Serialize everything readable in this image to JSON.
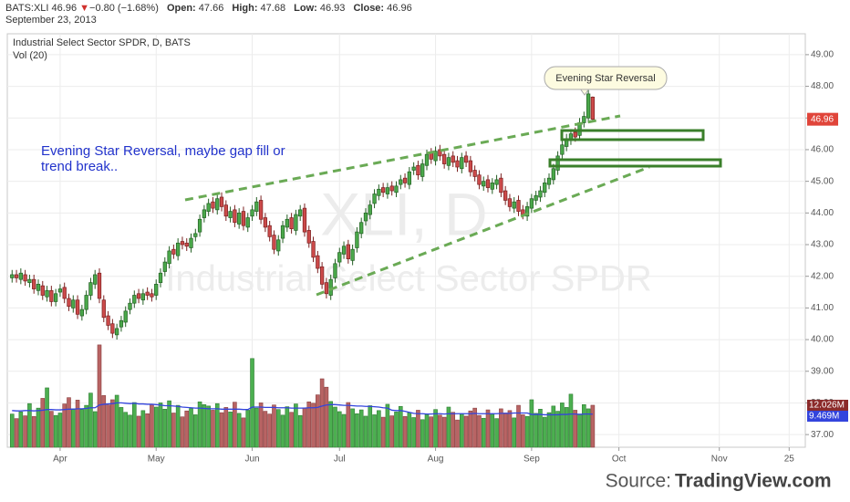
{
  "header": {
    "symbol": "BATS:XLI",
    "arrow": "▼",
    "change": "−0.80 (−1.68%)",
    "open_label": "Open:",
    "high_label": "High:",
    "low_label": "Low:",
    "close_label": "Close:",
    "date": "September 23, 2013"
  },
  "chart_data": {
    "type": "candlestick",
    "title": "Industrial Select Sector SPDR, D, BATS",
    "subtitle": "Vol (20)",
    "watermark": [
      "XLI, D",
      "Industrial Select Sector SPDR"
    ],
    "annotations": {
      "callout": "Evening Star Reversal",
      "note": [
        "Evening Star Reversal, maybe gap fill or",
        "trend break.."
      ]
    },
    "xlim": [
      -1.1,
      181.7
    ],
    "xticks": [
      {
        "value": 11,
        "label": "Apr"
      },
      {
        "value": 33,
        "label": "May"
      },
      {
        "value": 55,
        "label": "Jun"
      },
      {
        "value": 75,
        "label": "Jul"
      },
      {
        "value": 97,
        "label": "Aug"
      },
      {
        "value": 119,
        "label": "Sep"
      },
      {
        "value": 139,
        "label": "Oct"
      },
      {
        "value": 162,
        "label": "Nov"
      },
      {
        "value": 178,
        "label": "25"
      }
    ],
    "ylim": [
      36.6,
      49.66
    ],
    "yticks": [
      {
        "value": 37,
        "label": "37.00"
      },
      {
        "value": 38,
        "label": "38.00"
      },
      {
        "value": 39,
        "label": "39.00"
      },
      {
        "value": 40,
        "label": "40.00"
      },
      {
        "value": 41,
        "label": "41.00"
      },
      {
        "value": 42,
        "label": "42.00"
      },
      {
        "value": 43,
        "label": "43.00"
      },
      {
        "value": 44,
        "label": "44.00"
      },
      {
        "value": 45,
        "label": "45.00"
      },
      {
        "value": 46,
        "label": "46.00"
      },
      {
        "value": 47,
        "label": "47.00"
      },
      {
        "value": 48,
        "label": "48.00"
      },
      {
        "value": 49,
        "label": "49.00"
      }
    ],
    "y2lim": [
      0,
      118.4
    ],
    "grid": true,
    "up_color": "#4aa84a",
    "down_color": "#cc4a4a",
    "volume_up_color": "#4caf50",
    "volume_down_color": "#b86464",
    "volume_ma_color": "#3344dd",
    "price_label_color": "#e0453a",
    "volume_label_color": "#8b2a2a",
    "open": [
      41.95,
      42.05,
      41.9,
      42.05,
      41.8,
      41.9,
      41.55,
      41.7,
      41.35,
      41.55,
      41.2,
      41.5,
      41.65,
      41.3,
      41.0,
      41.25,
      40.75,
      40.95,
      41.4,
      41.75,
      42.1,
      41.25,
      40.75,
      40.5,
      40.15,
      40.4,
      40.55,
      40.95,
      41.15,
      41.45,
      41.25,
      41.5,
      41.45,
      41.4,
      41.8,
      42.15,
      42.4,
      42.85,
      42.65,
      43.1,
      43.05,
      42.9,
      43.25,
      43.4,
      43.85,
      44.05,
      44.35,
      44.1,
      44.5,
      44.25,
      43.85,
      44.1,
      43.65,
      44.05,
      43.55,
      43.9,
      44.05,
      44.4,
      43.85,
      43.6,
      43.3,
      42.8,
      43.2,
      43.55,
      43.85,
      43.45,
      43.9,
      44.15,
      43.45,
      43.1,
      42.65,
      42.3,
      41.8,
      41.4,
      41.95,
      42.45,
      42.7,
      43.0,
      42.5,
      42.9,
      43.35,
      43.75,
      43.95,
      44.3,
      44.55,
      44.8,
      44.6,
      44.85,
      44.65,
      44.9,
      45.1,
      44.9,
      45.35,
      45.5,
      45.15,
      45.5,
      45.9,
      45.65,
      46.0,
      45.85,
      45.5,
      45.8,
      45.65,
      45.4,
      45.8,
      45.65,
      45.35,
      45.2,
      44.85,
      45.05,
      44.75,
      44.9,
      45.1,
      44.7,
      44.45,
      44.15,
      44.4,
      44.1,
      43.9,
      44.15,
      44.4,
      44.5,
      44.65,
      44.9,
      45.05,
      45.35,
      45.85,
      46.1,
      46.3,
      46.55,
      46.45,
      46.85,
      47.0,
      47.66
    ],
    "high": [
      42.2,
      42.2,
      42.25,
      42.2,
      42.05,
      42.05,
      41.9,
      41.85,
      41.7,
      41.7,
      41.6,
      41.75,
      41.8,
      41.45,
      41.4,
      41.4,
      41.1,
      41.55,
      41.95,
      42.2,
      42.25,
      41.4,
      40.9,
      40.65,
      40.5,
      40.75,
      41.05,
      41.3,
      41.55,
      41.6,
      41.6,
      41.65,
      41.6,
      41.9,
      42.25,
      42.6,
      42.95,
      43.0,
      43.2,
      43.25,
      43.2,
      43.35,
      43.5,
      43.95,
      44.25,
      44.45,
      44.5,
      44.6,
      44.65,
      44.4,
      44.2,
      44.25,
      44.15,
      44.2,
      44.0,
      44.25,
      44.5,
      44.55,
      44.0,
      43.75,
      43.45,
      43.3,
      43.75,
      43.95,
      44.0,
      44.1,
      44.25,
      44.3,
      43.6,
      43.25,
      42.8,
      42.45,
      41.95,
      42.05,
      42.55,
      42.9,
      43.1,
      43.15,
      43.0,
      43.55,
      43.85,
      44.15,
      44.4,
      44.75,
      44.9,
      44.95,
      44.95,
      45.0,
      45.0,
      45.2,
      45.25,
      45.45,
      45.6,
      45.65,
      45.7,
      46.0,
      46.05,
      46.1,
      46.15,
      46.0,
      45.9,
      45.95,
      45.8,
      45.9,
      45.95,
      45.8,
      45.5,
      45.35,
      45.15,
      45.2,
      45.1,
      45.2,
      45.25,
      44.85,
      44.6,
      44.5,
      44.55,
      44.25,
      44.35,
      44.6,
      44.7,
      44.85,
      45.1,
      45.25,
      45.55,
      45.95,
      46.3,
      46.5,
      46.65,
      46.7,
      47.0,
      47.2,
      47.9,
      47.68
    ],
    "low": [
      41.8,
      41.8,
      41.75,
      41.7,
      41.65,
      41.45,
      41.4,
      41.25,
      41.2,
      41.05,
      41.05,
      41.35,
      41.15,
      40.9,
      40.85,
      40.65,
      40.6,
      40.8,
      41.25,
      41.6,
      41.15,
      40.55,
      40.3,
      40.05,
      40.0,
      40.25,
      40.4,
      40.8,
      41.0,
      41.15,
      41.1,
      41.25,
      41.2,
      41.25,
      41.65,
      42.0,
      42.25,
      42.55,
      42.5,
      42.85,
      42.8,
      42.75,
      43.1,
      43.25,
      43.7,
      43.9,
      44.0,
      43.95,
      44.05,
      43.75,
      43.7,
      43.55,
      43.5,
      43.45,
      43.4,
      43.75,
      43.9,
      43.65,
      43.4,
      43.1,
      42.7,
      42.65,
      43.05,
      43.4,
      43.35,
      43.3,
      43.75,
      43.25,
      42.9,
      42.45,
      42.1,
      41.6,
      41.3,
      41.25,
      41.8,
      42.3,
      42.55,
      42.4,
      42.35,
      42.75,
      43.2,
      43.6,
      43.8,
      44.15,
      44.4,
      44.5,
      44.45,
      44.55,
      44.5,
      44.75,
      44.8,
      44.75,
      45.2,
      45.05,
      45.0,
      45.35,
      45.55,
      45.5,
      45.65,
      45.4,
      45.35,
      45.45,
      45.3,
      45.25,
      45.45,
      45.15,
      45.0,
      44.75,
      44.7,
      44.65,
      44.6,
      44.75,
      44.5,
      44.25,
      44.05,
      44.0,
      43.9,
      43.8,
      43.75,
      44.0,
      44.25,
      44.35,
      44.5,
      44.75,
      44.9,
      45.2,
      45.7,
      45.95,
      46.15,
      46.25,
      46.3,
      46.7,
      46.85,
      46.93
    ],
    "close": [
      42.05,
      41.95,
      42.1,
      41.85,
      41.9,
      41.6,
      41.75,
      41.4,
      41.55,
      41.2,
      41.45,
      41.6,
      41.3,
      41.05,
      41.25,
      40.8,
      40.95,
      41.4,
      41.8,
      42.05,
      41.3,
      40.7,
      40.45,
      40.2,
      40.35,
      40.6,
      40.9,
      41.15,
      41.4,
      41.3,
      41.45,
      41.4,
      41.35,
      41.75,
      42.1,
      42.45,
      42.8,
      42.7,
      43.05,
      43.0,
      42.95,
      43.2,
      43.35,
      43.8,
      44.1,
      44.3,
      44.15,
      44.45,
      44.2,
      43.9,
      44.05,
      43.7,
      44.0,
      43.6,
      43.85,
      44.1,
      44.35,
      43.8,
      43.55,
      43.25,
      42.85,
      43.15,
      43.6,
      43.8,
      43.5,
      43.95,
      44.1,
      43.4,
      43.05,
      42.6,
      42.25,
      41.75,
      41.45,
      41.9,
      42.4,
      42.75,
      42.95,
      42.55,
      42.85,
      43.4,
      43.7,
      44.0,
      44.25,
      44.6,
      44.75,
      44.65,
      44.8,
      44.7,
      44.85,
      45.05,
      44.95,
      45.3,
      45.45,
      45.2,
      45.55,
      45.85,
      45.7,
      45.95,
      45.8,
      45.55,
      45.75,
      45.6,
      45.45,
      45.75,
      45.6,
      45.3,
      45.15,
      44.9,
      45.0,
      44.8,
      44.95,
      45.05,
      44.65,
      44.4,
      44.2,
      44.35,
      44.05,
      43.95,
      44.2,
      44.45,
      44.55,
      44.7,
      44.95,
      45.1,
      45.4,
      45.8,
      46.15,
      46.35,
      46.5,
      46.4,
      46.85,
      47.05,
      47.76,
      46.96
    ],
    "volume": [
      9.5,
      8.2,
      10.1,
      9.0,
      12.5,
      8.8,
      11.2,
      14.0,
      17.0,
      10.3,
      9.1,
      9.8,
      12.4,
      14.2,
      11.0,
      13.5,
      10.8,
      12.0,
      15.5,
      10.2,
      29.3,
      14.8,
      12.1,
      13.6,
      14.9,
      11.4,
      10.0,
      9.2,
      12.8,
      8.9,
      10.5,
      9.6,
      12.2,
      11.5,
      12.7,
      10.9,
      13.3,
      9.8,
      12.0,
      8.7,
      10.4,
      11.1,
      9.3,
      13.0,
      12.2,
      11.8,
      10.6,
      12.5,
      9.9,
      11.4,
      10.1,
      12.9,
      9.7,
      8.4,
      10.6,
      25.4,
      11.2,
      12.7,
      10.3,
      9.5,
      12.1,
      10.8,
      9.2,
      11.6,
      10.0,
      12.4,
      9.1,
      11.3,
      13.0,
      12.6,
      15.0,
      19.6,
      17.2,
      13.1,
      11.5,
      10.2,
      9.4,
      12.8,
      11.0,
      9.6,
      10.7,
      8.9,
      11.9,
      9.3,
      10.5,
      8.6,
      12.3,
      9.0,
      10.1,
      11.7,
      8.8,
      9.9,
      8.5,
      10.6,
      7.9,
      9.4,
      8.7,
      10.8,
      9.2,
      8.6,
      11.5,
      10.0,
      7.8,
      9.6,
      8.9,
      10.4,
      11.2,
      9.1,
      8.3,
      10.7,
      9.5,
      8.2,
      11.0,
      9.8,
      10.5,
      8.4,
      12.0,
      9.3,
      8.8,
      13.6,
      9.7,
      10.9,
      8.6,
      9.9,
      11.8,
      10.3,
      12.7,
      11.4,
      15.2,
      10.6,
      9.5,
      12.2,
      11.0,
      12.026
    ],
    "volume_label": "12.026M",
    "volume_ma": [
      10.5,
      10.4,
      10.4,
      10.5,
      10.5,
      10.4,
      10.5,
      10.6,
      10.8,
      10.8,
      10.7,
      10.7,
      10.8,
      10.9,
      10.9,
      11.0,
      11.0,
      11.1,
      11.3,
      11.3,
      12.1,
      12.3,
      12.4,
      12.5,
      12.7,
      12.7,
      12.6,
      12.5,
      12.6,
      12.4,
      12.4,
      12.3,
      12.3,
      12.2,
      12.1,
      11.9,
      11.9,
      11.8,
      11.7,
      11.5,
      11.4,
      11.3,
      11.2,
      11.2,
      11.1,
      11.0,
      11.0,
      11.0,
      10.9,
      10.9,
      10.9,
      10.9,
      10.9,
      10.8,
      10.8,
      11.5,
      11.5,
      11.5,
      11.4,
      11.4,
      11.4,
      11.3,
      11.3,
      11.3,
      11.2,
      11.2,
      11.2,
      11.2,
      11.3,
      11.3,
      11.4,
      11.8,
      12.1,
      12.2,
      12.2,
      12.1,
      12.0,
      12.0,
      11.9,
      11.8,
      11.8,
      11.7,
      11.7,
      11.6,
      11.5,
      11.3,
      11.2,
      10.6,
      10.5,
      10.5,
      10.3,
      10.0,
      9.7,
      9.6,
      9.6,
      9.5,
      9.5,
      9.6,
      9.6,
      9.5,
      9.6,
      9.6,
      9.6,
      9.6,
      9.6,
      9.6,
      9.7,
      9.6,
      9.6,
      9.6,
      9.6,
      9.6,
      9.7,
      9.7,
      9.7,
      9.8,
      9.8,
      9.8,
      9.8,
      9.4,
      9.4,
      9.4,
      9.3,
      9.3,
      9.3,
      9.3,
      9.4,
      9.4,
      9.5,
      9.5,
      9.4,
      9.5,
      9.5,
      9.469
    ],
    "volume_ma_label": "9.469M",
    "source": {
      "prefix": "Source:",
      "name": "TradingView.com"
    }
  }
}
